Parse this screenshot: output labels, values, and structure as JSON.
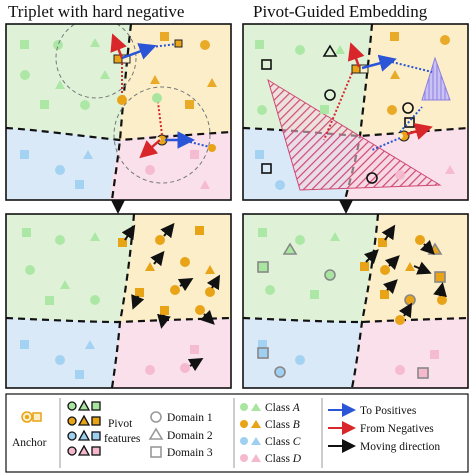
{
  "titles": {
    "left": "Triplet with hard negative",
    "right": "Pivot-Guided Embedding"
  },
  "legend": {
    "anchor": "Anchor",
    "pivot_line1": "Pivot",
    "pivot_line2": "features",
    "domains": [
      "Domain 1",
      "Domain 2",
      "Domain 3"
    ],
    "class_prefix": "Class",
    "classes": [
      "A",
      "B",
      "C",
      "D"
    ],
    "arrows": [
      "To Positives",
      "From Negatives",
      "Moving direction"
    ]
  },
  "colors": {
    "class_a_region": "#dff2d8",
    "class_b_region": "#fbeec8",
    "class_c_region": "#d9e9f7",
    "class_d_region": "#f9e0ea",
    "class_a_marker": "#a8e6a0",
    "class_b_marker": "#e8a317",
    "class_c_marker": "#9fd0f2",
    "class_d_marker": "#f5b8cc",
    "to_positives": "#2a55d6",
    "from_negatives": "#d8262b",
    "moving": "#111111",
    "hatch": "#d04a72",
    "hatch_blue": "#8f7fe0"
  }
}
